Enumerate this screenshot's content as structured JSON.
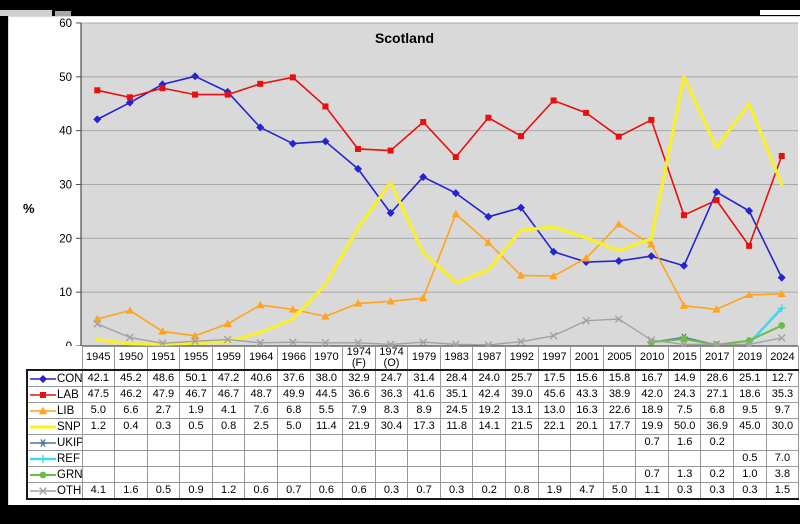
{
  "window": {
    "background": "#000000",
    "page_background": "#ffffff"
  },
  "chart_data": {
    "type": "line",
    "title": "Scotland",
    "ylabel": "%",
    "ylim": [
      0,
      60
    ],
    "yticks": [
      0,
      10,
      20,
      30,
      40,
      50,
      60
    ],
    "grid": true,
    "plot_bg": "#d9d9d9",
    "grid_color": "#a9a9a9",
    "axis_color": "#4d4d4d",
    "legend_position": "table-left",
    "categories": [
      "1945",
      "1950",
      "1951",
      "1955",
      "1959",
      "1964",
      "1966",
      "1970",
      "1974\n(F)",
      "1974\n(O)",
      "1979",
      "1983",
      "1987",
      "1992",
      "1997",
      "2001",
      "2005",
      "2010",
      "2015",
      "2017",
      "2019",
      "2024"
    ],
    "series": [
      {
        "name": "CON",
        "color": "#2424d3",
        "marker": "diamond",
        "line_width": 1.6,
        "values": [
          42.1,
          45.2,
          48.6,
          50.1,
          47.2,
          40.6,
          37.6,
          38.0,
          32.9,
          24.7,
          31.4,
          28.4,
          24.0,
          25.7,
          17.5,
          15.6,
          15.8,
          16.7,
          14.9,
          28.6,
          25.1,
          12.7
        ]
      },
      {
        "name": "LAB",
        "color": "#e8100e",
        "marker": "square",
        "line_width": 1.6,
        "values": [
          47.5,
          46.2,
          47.9,
          46.7,
          46.7,
          48.7,
          49.9,
          44.5,
          36.6,
          36.3,
          41.6,
          35.1,
          42.4,
          39.0,
          45.6,
          43.3,
          38.9,
          42.0,
          24.3,
          27.1,
          18.6,
          35.3
        ]
      },
      {
        "name": "LIB",
        "color": "#ffa41c",
        "marker": "triangle",
        "line_width": 1.6,
        "values": [
          5.0,
          6.6,
          2.7,
          1.9,
          4.1,
          7.6,
          6.8,
          5.5,
          7.9,
          8.3,
          8.9,
          24.5,
          19.2,
          13.1,
          13.0,
          16.3,
          22.6,
          18.9,
          7.5,
          6.8,
          9.5,
          9.7
        ]
      },
      {
        "name": "SNP",
        "color": "#f8f02b",
        "marker": "none",
        "line_width": 3.2,
        "values": [
          1.2,
          0.4,
          0.3,
          0.5,
          0.8,
          2.5,
          5.0,
          11.4,
          21.9,
          30.4,
          17.3,
          11.8,
          14.1,
          21.5,
          22.1,
          20.1,
          17.7,
          19.9,
          50.0,
          36.9,
          45.0,
          30.0
        ]
      },
      {
        "name": "UKIP",
        "color": "#54779f",
        "marker": "asterisk",
        "line_width": 1.5,
        "values": [
          null,
          null,
          null,
          null,
          null,
          null,
          null,
          null,
          null,
          null,
          null,
          null,
          null,
          null,
          null,
          null,
          null,
          0.7,
          1.6,
          0.2,
          null,
          null
        ]
      },
      {
        "name": "REF",
        "color": "#41d7ee",
        "marker": "plus",
        "line_width": 2.6,
        "values": [
          null,
          null,
          null,
          null,
          null,
          null,
          null,
          null,
          null,
          null,
          null,
          null,
          null,
          null,
          null,
          null,
          null,
          null,
          null,
          null,
          0.5,
          7.0
        ]
      },
      {
        "name": "GRN",
        "color": "#6cbd45",
        "marker": "circle",
        "line_width": 2.0,
        "values": [
          null,
          null,
          null,
          null,
          null,
          null,
          null,
          null,
          null,
          null,
          null,
          null,
          null,
          null,
          null,
          null,
          null,
          0.7,
          1.3,
          0.2,
          1.0,
          3.8
        ]
      },
      {
        "name": "OTH",
        "color": "#a2a2a2",
        "marker": "x",
        "line_width": 1.4,
        "values": [
          4.1,
          1.6,
          0.5,
          0.9,
          1.2,
          0.6,
          0.7,
          0.6,
          0.6,
          0.3,
          0.7,
          0.3,
          0.2,
          0.8,
          1.9,
          4.7,
          5.0,
          1.1,
          0.3,
          0.3,
          0.3,
          1.5
        ]
      }
    ]
  }
}
